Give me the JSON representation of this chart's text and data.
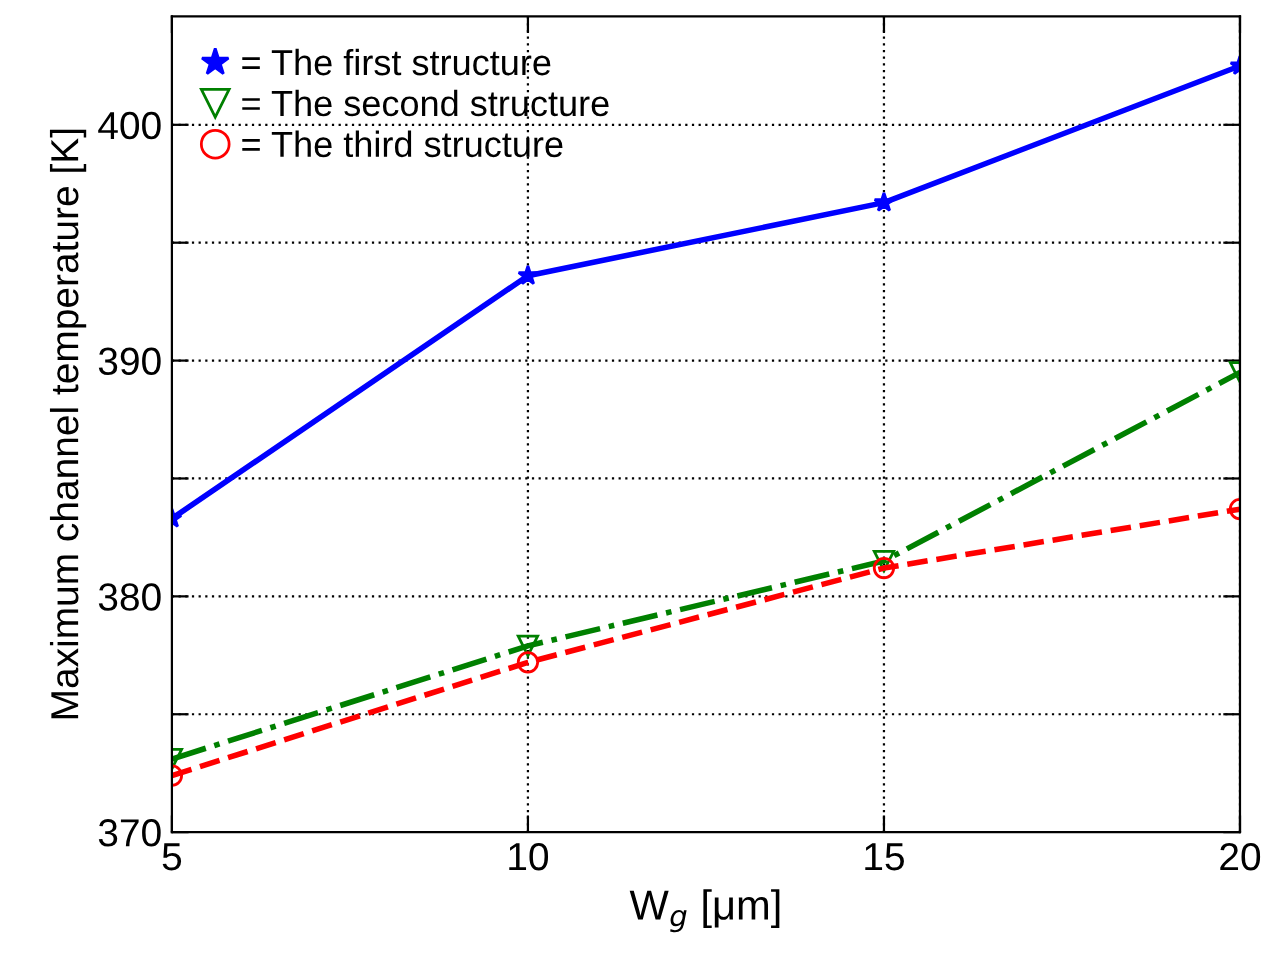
{
  "chart_data": {
    "type": "line",
    "xlabel": "W$_{g}$ [μm]",
    "ylabel": "Maximum channel temperature [K]",
    "x": [
      5,
      10,
      15,
      20
    ],
    "series": [
      {
        "name": "= The first structure",
        "color": "#0000ff",
        "marker": "star",
        "line_style": "solid",
        "values": [
          383.3,
          393.6,
          396.7,
          402.5
        ]
      },
      {
        "name": "= The second structure",
        "color": "#008000",
        "marker": "triangle_down",
        "line_style": "dashdot",
        "values": [
          373.1,
          377.9,
          381.5,
          389.5
        ]
      },
      {
        "name": "= The third structure",
        "color": "#ff0000",
        "marker": "circle",
        "line_style": "dashed",
        "values": [
          372.4,
          377.2,
          381.2,
          383.7
        ]
      }
    ],
    "xlim": [
      5,
      20
    ],
    "xticks": [
      5,
      10,
      15,
      20
    ],
    "ylim": [
      370,
      404.6
    ],
    "yticks": [
      370,
      {
        "value": 375,
        "label": null
      },
      380,
      {
        "value": 385,
        "label": null
      },
      390,
      {
        "value": 395,
        "label": null
      },
      400
    ],
    "grid": true,
    "legend": "top left"
  }
}
